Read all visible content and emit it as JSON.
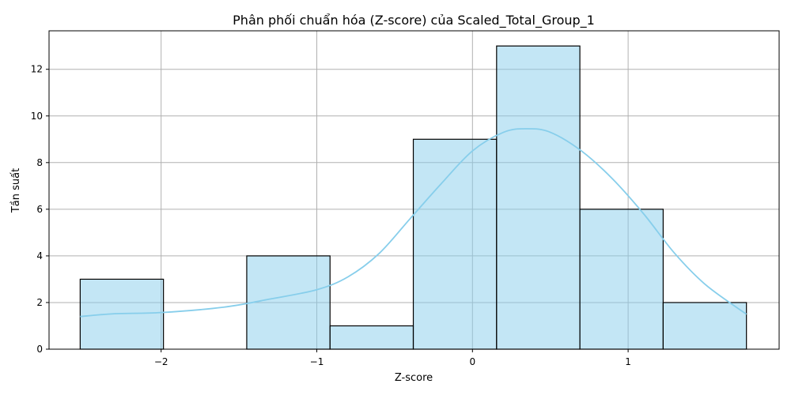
{
  "chart_data": {
    "type": "histogram",
    "title": "Phân phối chuẩn hóa (Z-score) của Scaled_Total_Group_1",
    "xlabel": "Z-score",
    "ylabel": "Tần suất",
    "xlim": [
      -2.72,
      1.97
    ],
    "ylim": [
      0,
      13.65
    ],
    "x_ticks": [
      -2,
      -1,
      0,
      1
    ],
    "x_tick_labels": [
      "−2",
      "−1",
      "0",
      "1"
    ],
    "y_ticks": [
      0,
      2,
      4,
      6,
      8,
      10,
      12
    ],
    "y_tick_labels": [
      "0",
      "2",
      "4",
      "6",
      "8",
      "10",
      "12"
    ],
    "bin_edges": [
      -2.52,
      -1.985,
      -1.45,
      -0.915,
      -0.38,
      0.155,
      0.69,
      1.225,
      1.76
    ],
    "counts": [
      3,
      0,
      4,
      1,
      9,
      13,
      6,
      2
    ],
    "kde": {
      "x": [
        -2.52,
        -2.3,
        -2.0,
        -1.6,
        -1.3,
        -1.0,
        -0.8,
        -0.6,
        -0.4,
        -0.2,
        0.0,
        0.2,
        0.35,
        0.5,
        0.7,
        0.9,
        1.1,
        1.3,
        1.5,
        1.76
      ],
      "y": [
        1.4,
        1.52,
        1.57,
        1.8,
        2.15,
        2.55,
        3.1,
        4.1,
        5.6,
        7.1,
        8.5,
        9.3,
        9.45,
        9.3,
        8.5,
        7.3,
        5.8,
        4.1,
        2.75,
        1.5
      ]
    },
    "grid": true,
    "colors": {
      "bar_fill": "#87ceeb",
      "bar_fill_opacity": 0.5,
      "bar_edge": "#000000",
      "kde_line": "#87ceeb",
      "grid": "#b0b0b0"
    }
  }
}
